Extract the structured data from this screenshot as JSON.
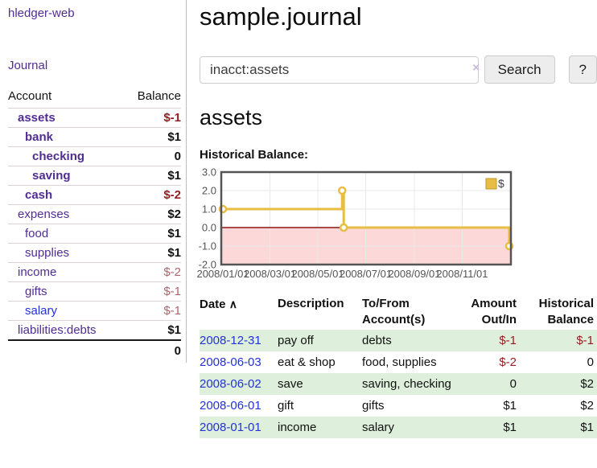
{
  "colors": {
    "purple_link": "#512d93",
    "blue_link": "#2432d6",
    "strong_negative": "#951d1f",
    "soft_negative": "#b2636c",
    "row_green": "#def0dc"
  },
  "sidebar": {
    "app_title": "hledger-web",
    "journal_label": "Journal",
    "account_header": "Account",
    "balance_header": "Balance",
    "accounts": [
      {
        "name": "assets",
        "balance": "$-1",
        "level": 1,
        "matched": true,
        "neg": "strong"
      },
      {
        "name": "bank",
        "balance": "$1",
        "level": 2,
        "matched": true,
        "neg": "none"
      },
      {
        "name": "checking",
        "balance": "0",
        "level": 3,
        "matched": true,
        "neg": "none"
      },
      {
        "name": "saving",
        "balance": "$1",
        "level": 3,
        "matched": true,
        "neg": "none"
      },
      {
        "name": "cash",
        "balance": "$-2",
        "level": 2,
        "matched": true,
        "neg": "strong"
      },
      {
        "name": "expenses",
        "balance": "$2",
        "level": 1,
        "matched": false,
        "neg": "none"
      },
      {
        "name": "food",
        "balance": "$1",
        "level": 2,
        "matched": false,
        "neg": "none"
      },
      {
        "name": "supplies",
        "balance": "$1",
        "level": 2,
        "matched": false,
        "neg": "none"
      },
      {
        "name": "income",
        "balance": "$-2",
        "level": 1,
        "matched": false,
        "neg": "soft"
      },
      {
        "name": "gifts",
        "balance": "$-1",
        "level": 2,
        "matched": false,
        "neg": "soft"
      },
      {
        "name": "salary",
        "balance": "$-1",
        "level": 2,
        "matched": false,
        "neg": "soft",
        "link_style": "blue"
      },
      {
        "name": "liabilities:debts",
        "balance": "$1",
        "level": 1,
        "matched": false,
        "neg": "none"
      }
    ],
    "total": "0"
  },
  "main": {
    "title": "sample.journal",
    "search": {
      "value": "inacct:assets",
      "clear_icon": "×",
      "button_label": "Search",
      "help_label": "?"
    },
    "account_heading": "assets",
    "register": {
      "headers": {
        "date": "Date",
        "sort_indicator": "∧",
        "description": "Description",
        "accounts": "To/From Account(s)",
        "amount": "Amount Out/In",
        "balance": "Historical Balance"
      },
      "rows": [
        {
          "date": "2008-12-31",
          "description": "pay off",
          "accounts": "debts",
          "amount": "$-1",
          "amount_neg": true,
          "balance": "$-1",
          "balance_neg": true
        },
        {
          "date": "2008-06-03",
          "description": "eat & shop",
          "accounts": "food, supplies",
          "amount": "$-2",
          "amount_neg": true,
          "balance": "0",
          "balance_neg": false
        },
        {
          "date": "2008-06-02",
          "description": "save",
          "accounts": "saving, checking",
          "amount": "0",
          "amount_neg": false,
          "balance": "$2",
          "balance_neg": false
        },
        {
          "date": "2008-06-01",
          "description": "gift",
          "accounts": "gifts",
          "amount": "$1",
          "amount_neg": false,
          "balance": "$2",
          "balance_neg": false
        },
        {
          "date": "2008-01-01",
          "description": "income",
          "accounts": "salary",
          "amount": "$1",
          "amount_neg": false,
          "balance": "$1",
          "balance_neg": false
        }
      ]
    }
  },
  "chart_data": {
    "type": "line",
    "title": "Historical Balance:",
    "step": true,
    "series": [
      {
        "name": "$",
        "points": [
          [
            "2008-01-01",
            1
          ],
          [
            "2008-06-01",
            2
          ],
          [
            "2008-06-03",
            0
          ],
          [
            "2008-12-31",
            -1
          ]
        ]
      }
    ],
    "x_range": [
      "2008-01-01",
      "2008-12-31"
    ],
    "ylim": [
      -2,
      3
    ],
    "y_ticks": [
      3.0,
      2.0,
      1.0,
      0.0,
      -1.0,
      -2.0
    ],
    "x_ticks": [
      {
        "date": "2008-01-01",
        "label": "2008/01/01"
      },
      {
        "date": "2008-03-01",
        "label": "2008/03/01"
      },
      {
        "date": "2008-05-01",
        "label": "2008/05/01"
      },
      {
        "date": "2008-07-01",
        "label": "2008/07/01"
      },
      {
        "date": "2008-09-01",
        "label": "2008/09/01"
      },
      {
        "date": "2008-11-01",
        "label": "2008/11/01"
      }
    ],
    "legend": [
      {
        "label": "$",
        "color": "#e7bd43"
      }
    ],
    "legend_position": "top-right",
    "grid": true,
    "grid_color": "#e8e8e8",
    "line_color": "#e7bd43",
    "marker_fill": "#ffffff",
    "below_zero_fill": "#fcd8d8",
    "zero_line_color": "#8b1616",
    "border_color": "#545454",
    "tick_text_color": "#545454",
    "legend_swatch_border": "#bf992e"
  }
}
